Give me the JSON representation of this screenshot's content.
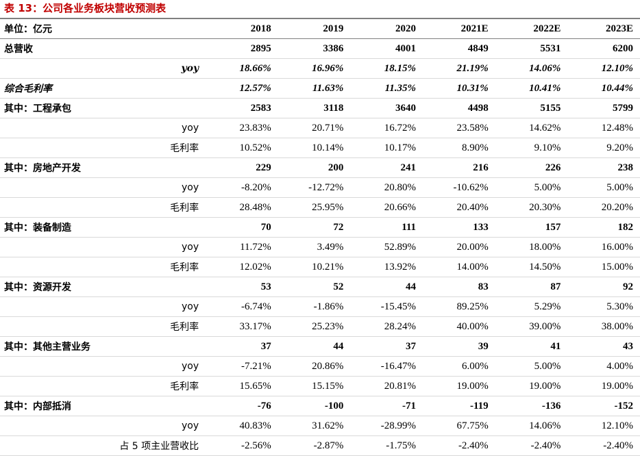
{
  "title": "表 13：公司各业务板块营收预测表",
  "header": {
    "label": "单位：亿元",
    "years": [
      "2018",
      "2019",
      "2020",
      "2021E",
      "2022E",
      "2023E"
    ]
  },
  "rows": [
    {
      "type": "seg",
      "label": "总营收",
      "values": [
        "2895",
        "3386",
        "4001",
        "4849",
        "5531",
        "6200"
      ]
    },
    {
      "type": "em-sub",
      "label": "yoy",
      "values": [
        "18.66%",
        "16.96%",
        "18.15%",
        "21.19%",
        "14.06%",
        "12.10%"
      ]
    },
    {
      "type": "em",
      "label": "综合毛利率",
      "values": [
        "12.57%",
        "11.63%",
        "11.35%",
        "10.31%",
        "10.41%",
        "10.44%"
      ]
    },
    {
      "type": "seg",
      "label": "其中：工程承包",
      "values": [
        "2583",
        "3118",
        "3640",
        "4498",
        "5155",
        "5799"
      ]
    },
    {
      "type": "sub",
      "label": "yoy",
      "values": [
        "23.83%",
        "20.71%",
        "16.72%",
        "23.58%",
        "14.62%",
        "12.48%"
      ]
    },
    {
      "type": "sub",
      "label": "毛利率",
      "values": [
        "10.52%",
        "10.14%",
        "10.17%",
        "8.90%",
        "9.10%",
        "9.20%"
      ]
    },
    {
      "type": "seg",
      "label": "其中：房地产开发",
      "values": [
        "229",
        "200",
        "241",
        "216",
        "226",
        "238"
      ]
    },
    {
      "type": "sub",
      "label": "yoy",
      "values": [
        "-8.20%",
        "-12.72%",
        "20.80%",
        "-10.62%",
        "5.00%",
        "5.00%"
      ]
    },
    {
      "type": "sub",
      "label": "毛利率",
      "values": [
        "28.48%",
        "25.95%",
        "20.66%",
        "20.40%",
        "20.30%",
        "20.20%"
      ]
    },
    {
      "type": "seg",
      "label": "其中：装备制造",
      "values": [
        "70",
        "72",
        "111",
        "133",
        "157",
        "182"
      ]
    },
    {
      "type": "sub",
      "label": "yoy",
      "values": [
        "11.72%",
        "3.49%",
        "52.89%",
        "20.00%",
        "18.00%",
        "16.00%"
      ]
    },
    {
      "type": "sub",
      "label": "毛利率",
      "values": [
        "12.02%",
        "10.21%",
        "13.92%",
        "14.00%",
        "14.50%",
        "15.00%"
      ]
    },
    {
      "type": "seg",
      "label": "其中：资源开发",
      "values": [
        "53",
        "52",
        "44",
        "83",
        "87",
        "92"
      ]
    },
    {
      "type": "sub",
      "label": "yoy",
      "values": [
        "-6.74%",
        "-1.86%",
        "-15.45%",
        "89.25%",
        "5.29%",
        "5.30%"
      ]
    },
    {
      "type": "sub",
      "label": "毛利率",
      "values": [
        "33.17%",
        "25.23%",
        "28.24%",
        "40.00%",
        "39.00%",
        "38.00%"
      ]
    },
    {
      "type": "seg",
      "label": "其中：其他主营业务",
      "values": [
        "37",
        "44",
        "37",
        "39",
        "41",
        "43"
      ]
    },
    {
      "type": "sub",
      "label": "yoy",
      "values": [
        "-7.21%",
        "20.86%",
        "-16.47%",
        "6.00%",
        "5.00%",
        "4.00%"
      ]
    },
    {
      "type": "sub",
      "label": "毛利率",
      "values": [
        "15.65%",
        "15.15%",
        "20.81%",
        "19.00%",
        "19.00%",
        "19.00%"
      ]
    },
    {
      "type": "seg",
      "label": "其中：内部抵消",
      "values": [
        "-76",
        "-100",
        "-71",
        "-119",
        "-136",
        "-152"
      ]
    },
    {
      "type": "sub",
      "label": "yoy",
      "values": [
        "40.83%",
        "31.62%",
        "-28.99%",
        "67.75%",
        "14.06%",
        "12.10%"
      ]
    },
    {
      "type": "sub",
      "label": "占 5 项主业营收比",
      "values": [
        "-2.56%",
        "-2.87%",
        "-1.75%",
        "-2.40%",
        "-2.40%",
        "-2.40%"
      ]
    }
  ]
}
